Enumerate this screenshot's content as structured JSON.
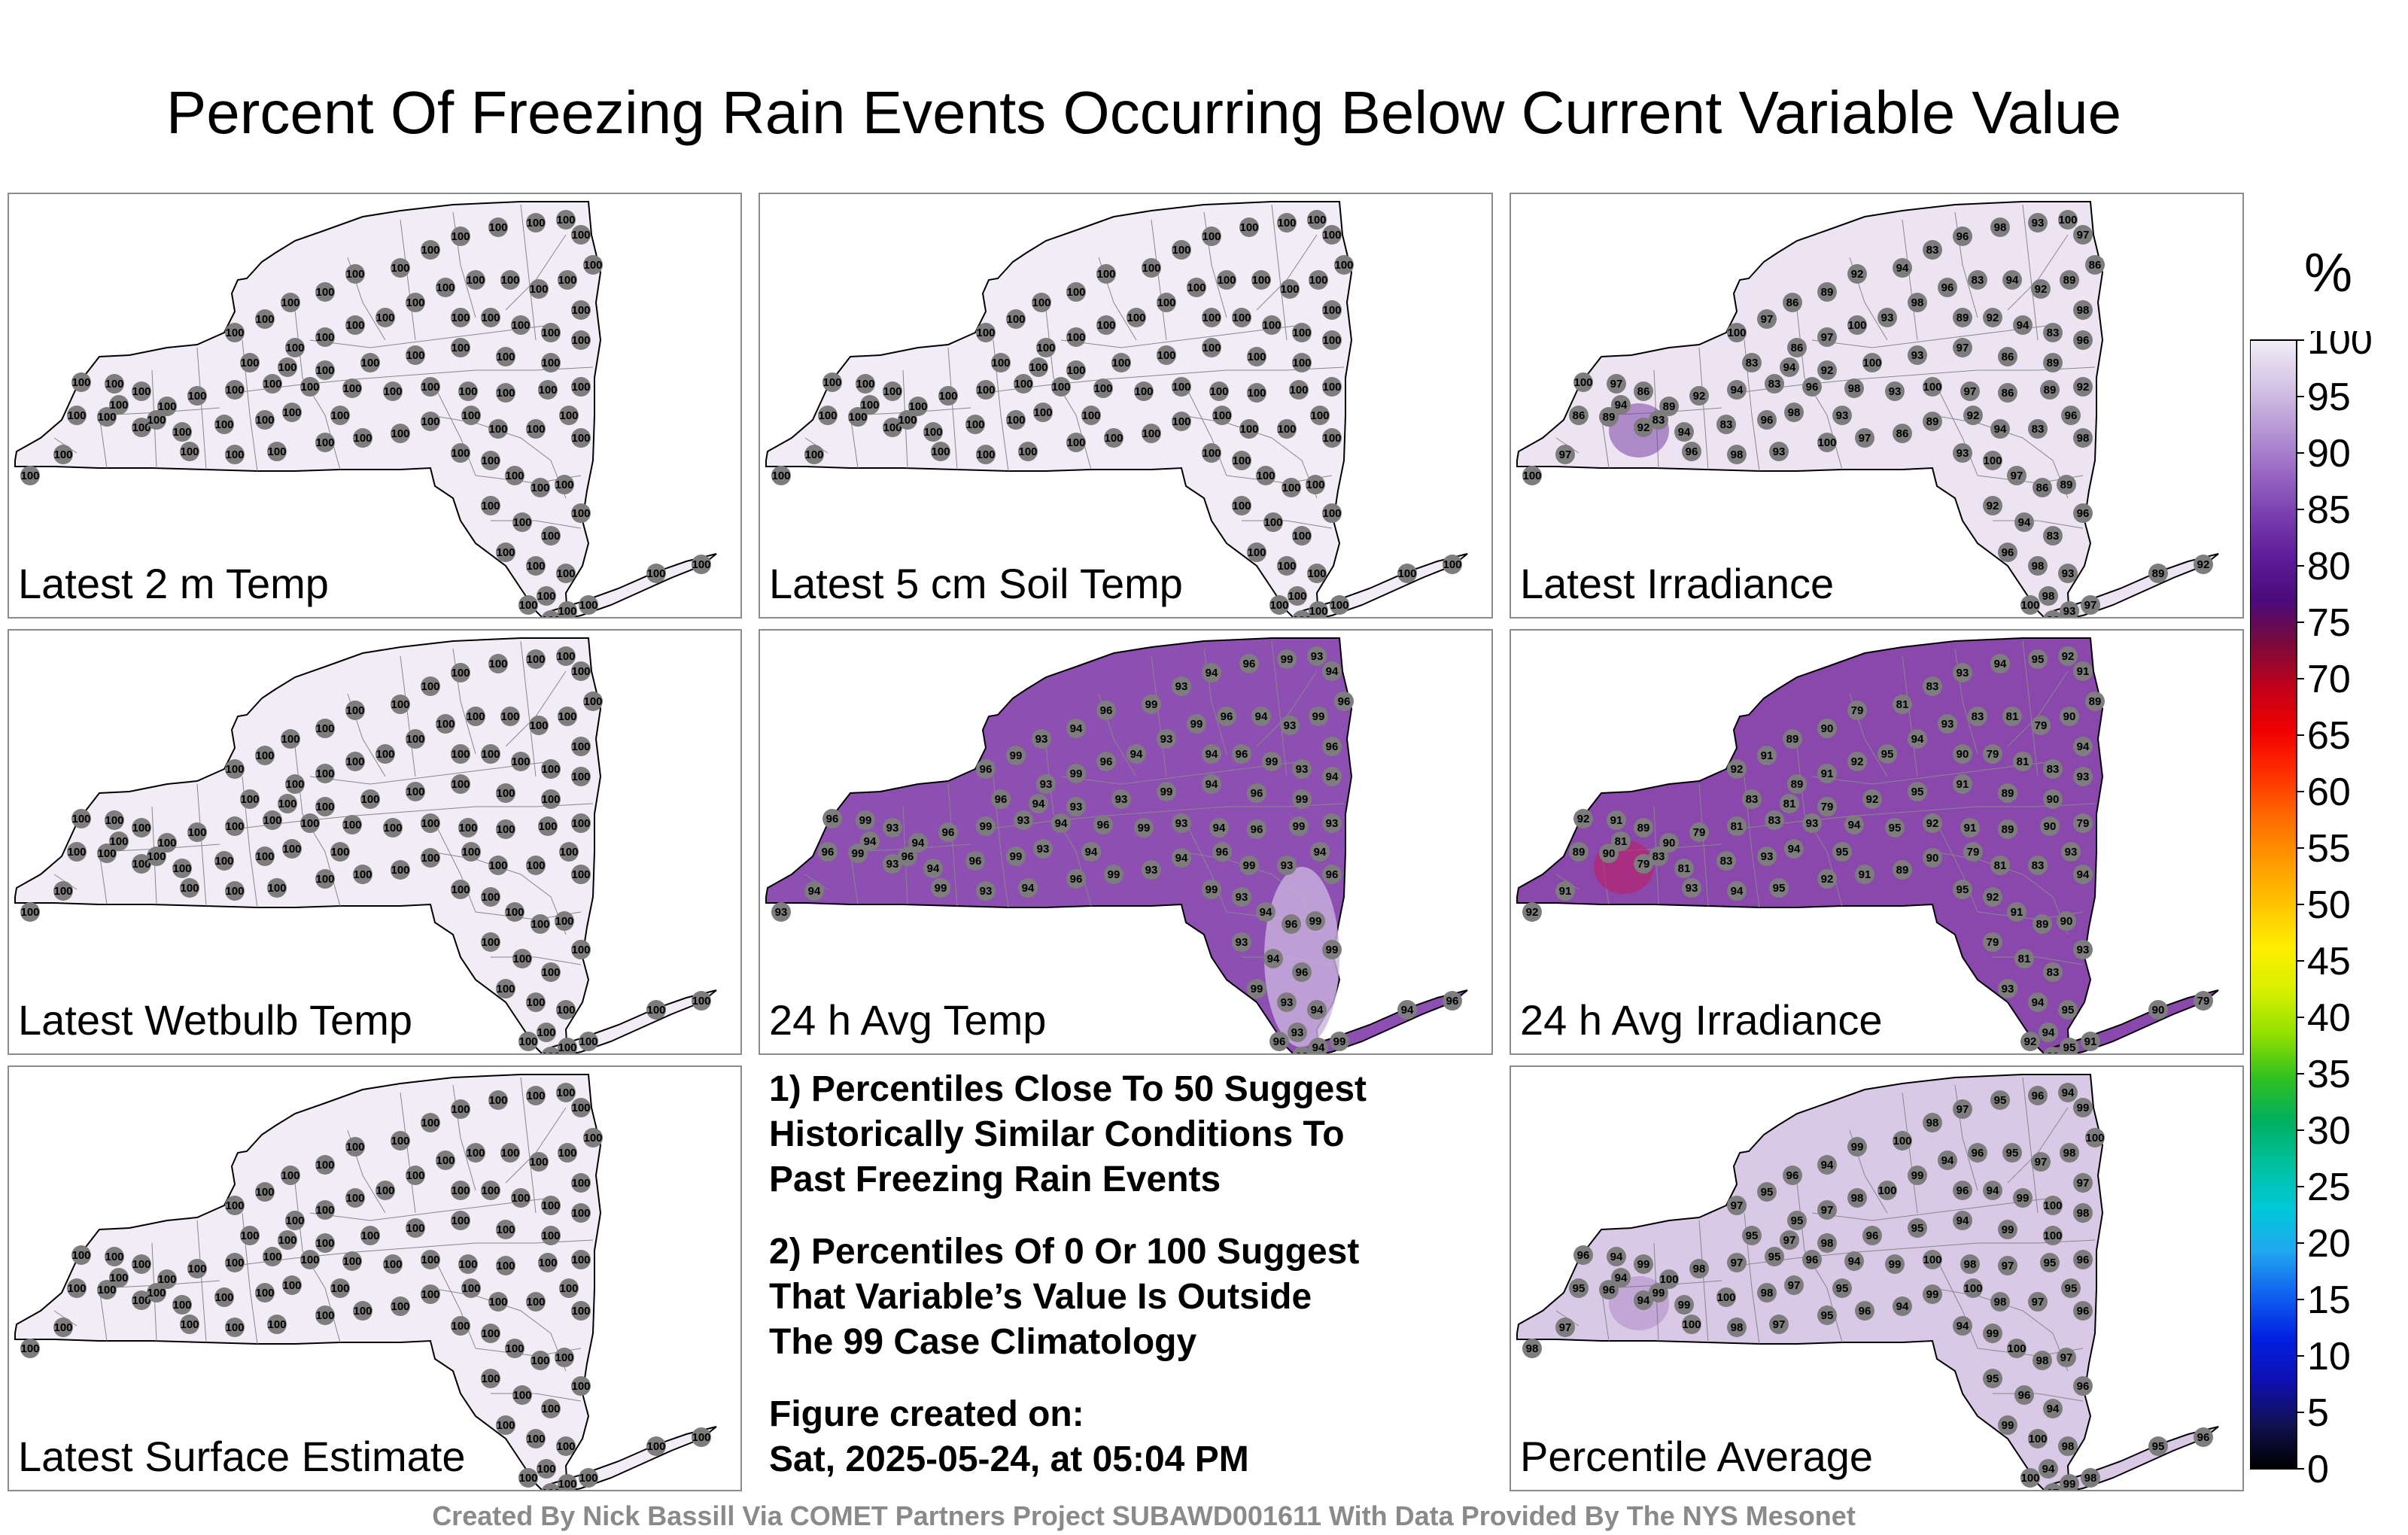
{
  "title": "Percent Of Freezing Rain Events Occurring Below Current Variable Value",
  "panels": [
    {
      "label": "Latest 2 m Temp",
      "fill": "#f1ecf6",
      "values": [
        "100"
      ]
    },
    {
      "label": "Latest 5 cm Soil Temp",
      "fill": "#f1ecf6",
      "values": [
        "100"
      ]
    },
    {
      "label": "Latest Irradiance",
      "fill": "#ece4f3",
      "values": [
        "100",
        "97",
        "86",
        "89",
        "92",
        "94",
        "83",
        "96",
        "98",
        "93"
      ]
    },
    {
      "label": "Latest Wetbulb Temp",
      "fill": "#f1ecf6",
      "values": [
        "100"
      ]
    },
    {
      "label": "24 h Avg Temp",
      "fill": "#8e4fb2",
      "values": [
        "93",
        "94",
        "96",
        "99"
      ]
    },
    {
      "label": "24 h Avg Irradiance",
      "fill": "#8a48ad",
      "values": [
        "92",
        "91",
        "89",
        "90",
        "79",
        "81",
        "83",
        "93",
        "94",
        "95"
      ]
    },
    {
      "label": "Latest Surface Estimate",
      "fill": "#f1ecf6",
      "values": [
        "100"
      ]
    },
    {
      "label": "Percentile Average",
      "fill": "#d9c9e6",
      "values": [
        "98",
        "97",
        "95",
        "96",
        "94",
        "99",
        "100"
      ]
    }
  ],
  "notes": {
    "note1": [
      "1) Percentiles Close To 50 Suggest",
      "Historically Similar Conditions To",
      "Past Freezing Rain Events"
    ],
    "note2": [
      "2) Percentiles Of 0 Or 100 Suggest",
      "That Variable’s Value Is Outside",
      "The 99 Case Climatology"
    ],
    "created": [
      "Figure created on:",
      "Sat, 2025-05-24, at 05:04 PM"
    ]
  },
  "colorbar": {
    "unit": "%",
    "ticks": [
      "100",
      "95",
      "90",
      "85",
      "80",
      "75",
      "70",
      "65",
      "60",
      "55",
      "50",
      "45",
      "40",
      "35",
      "30",
      "25",
      "20",
      "15",
      "10",
      "5",
      "0"
    ],
    "colors": [
      "#f2eef7",
      "#d6c6e6",
      "#b89ad6",
      "#9a6ac4",
      "#7a3fb0",
      "#5e1c98",
      "#4a0a7a",
      "#7a0a3a",
      "#c00018",
      "#f00000",
      "#ff3000",
      "#ff6a00",
      "#ff9a00",
      "#ffc400",
      "#ffee00",
      "#d6f000",
      "#90e000",
      "#30c020",
      "#00b060",
      "#00c0a0",
      "#00c8d8",
      "#20a8f0",
      "#1060f0",
      "#0020e0",
      "#1010b0",
      "#101050",
      "#000000"
    ]
  },
  "footer": "Created By Nick Bassill Via COMET Partners Project SUBAWD001611 With Data Provided By The NYS Mesonet"
}
